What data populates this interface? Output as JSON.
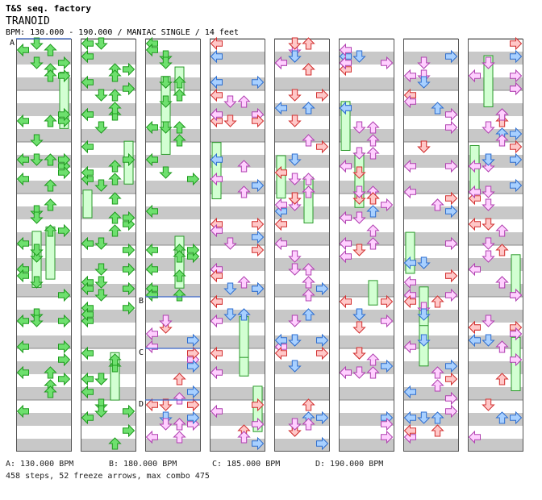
{
  "header": {
    "site": "T&S seq. factory",
    "song": "TRANOID",
    "info": "BPM: 130.000 - 190.000 / MANIAC SINGLE / 14 feet"
  },
  "colors": {
    "gray_band": "#c8c8c8",
    "border": "#555555",
    "bpm_line": "#3a66c8",
    "red_fill": "#ffc8c8",
    "red_stroke": "#d23030",
    "blue_fill": "#a8d0ff",
    "blue_stroke": "#2f6fd0",
    "pink_fill": "#ffd0ff",
    "pink_stroke": "#b040b0",
    "green_fill": "#6ee06e",
    "green_stroke": "#1e9a1e",
    "freeze_fill": "#d2ffd2",
    "freeze_stroke": "#2a9a2a"
  },
  "chart": {
    "columns": 8,
    "measures_per_column": 8,
    "bpm_markers": [
      {
        "label": "A",
        "column": 0,
        "measure": 0
      },
      {
        "label": "B",
        "column": 2,
        "measure": 5
      },
      {
        "label": "C",
        "column": 2,
        "measure": 6
      },
      {
        "label": "D",
        "column": 2,
        "measure": 7
      }
    ]
  },
  "legend": {
    "a": "A: 130.000 BPM",
    "b": "B: 180.000 BPM",
    "c": "C: 185.000 BPM",
    "d": "D: 190.000 BPM"
  },
  "summary": "458 steps, 52 freeze arrows, max combo 475"
}
